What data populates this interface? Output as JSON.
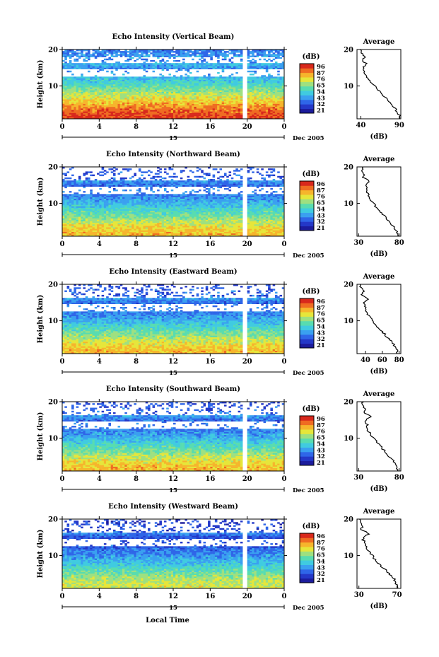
{
  "figure": {
    "xlabel": "Local Time",
    "date_label": "Dec 2005",
    "colorbar_unit": "(dB)",
    "colorbar_ticks": [
      "96",
      "87",
      "76",
      "65",
      "54",
      "43",
      "32",
      "21"
    ],
    "colorscale": [
      "#1c1c9c",
      "#2438c8",
      "#2f66e8",
      "#3aa0f0",
      "#40cbe0",
      "#58dcb0",
      "#9ee080",
      "#e6e63a",
      "#f6b52c",
      "#ef6c22",
      "#d8281c"
    ],
    "x_ticks": [
      "0",
      "4",
      "8",
      "12",
      "16",
      "20",
      "0"
    ],
    "day_label": "15",
    "ylabel": "Height (km)",
    "y_ticks": [
      "20",
      "10"
    ],
    "avg_title": "Average",
    "avg_xlabel": "(dB)"
  },
  "chart_data": [
    {
      "type": "heatmap",
      "title": "Echo Intensity (Vertical Beam)",
      "xlabel": "",
      "ylabel": "Height (km)",
      "x_range": [
        0,
        24
      ],
      "y_range": [
        1,
        20
      ],
      "z_range": [
        21,
        96
      ],
      "z_unit": "dB",
      "data_gap_hours": [
        19.6,
        20.0
      ],
      "profile_height_km": [
        2,
        4,
        6,
        8,
        10,
        12,
        14,
        15,
        16,
        17,
        18,
        19,
        20
      ],
      "profile_intensity_db": [
        90,
        84,
        75,
        67,
        58,
        50,
        44,
        43,
        48,
        42,
        45,
        41,
        40
      ],
      "average": {
        "title": "Average",
        "xlabel": "(dB)",
        "xticks": [
          "40",
          "90"
        ],
        "xlim": [
          35,
          92
        ]
      }
    },
    {
      "type": "heatmap",
      "title": "Echo Intensity (Northward Beam)",
      "xlabel": "",
      "ylabel": "Height (km)",
      "x_range": [
        0,
        24
      ],
      "y_range": [
        1,
        20
      ],
      "z_range": [
        21,
        96
      ],
      "z_unit": "dB",
      "data_gap_hours": [
        19.6,
        20.0
      ],
      "profile_height_km": [
        2,
        4,
        6,
        8,
        10,
        12,
        14,
        15,
        16,
        17,
        18,
        19,
        20
      ],
      "profile_intensity_db": [
        78,
        72,
        64,
        56,
        48,
        42,
        40,
        38,
        44,
        36,
        37,
        35,
        35
      ],
      "average": {
        "title": "Average",
        "xlabel": "(dB)",
        "xticks": [
          "30",
          "80"
        ],
        "xlim": [
          28,
          82
        ]
      }
    },
    {
      "type": "heatmap",
      "title": "Echo Intensity (Eastward Beam)",
      "xlabel": "",
      "ylabel": "Height (km)",
      "x_range": [
        0,
        24
      ],
      "y_range": [
        1,
        20
      ],
      "z_range": [
        21,
        96
      ],
      "z_unit": "dB",
      "data_gap_hours": [
        19.6,
        20.0
      ],
      "profile_height_km": [
        2,
        4,
        6,
        8,
        10,
        12,
        14,
        15,
        16,
        17,
        18,
        19,
        20
      ],
      "profile_intensity_db": [
        78,
        72,
        64,
        56,
        48,
        42,
        40,
        38,
        45,
        36,
        38,
        35,
        34
      ],
      "average": {
        "title": "Average",
        "xlabel": "(dB)",
        "xticks": [
          "40",
          "60",
          "80"
        ],
        "xlim": [
          30,
          82
        ]
      }
    },
    {
      "type": "heatmap",
      "title": "Echo Intensity (Southward Beam)",
      "xlabel": "",
      "ylabel": "Height (km)",
      "x_range": [
        0,
        24
      ],
      "y_range": [
        1,
        20
      ],
      "z_range": [
        21,
        96
      ],
      "z_unit": "dB",
      "data_gap_hours": [
        19.6,
        20.0
      ],
      "profile_height_km": [
        2,
        4,
        6,
        8,
        10,
        12,
        14,
        15,
        16,
        17,
        18,
        19,
        20
      ],
      "profile_intensity_db": [
        78,
        72,
        64,
        56,
        48,
        42,
        40,
        38,
        45,
        36,
        38,
        35,
        35
      ],
      "average": {
        "title": "Average",
        "xlabel": "(dB)",
        "xticks": [
          "30",
          "80"
        ],
        "xlim": [
          28,
          82
        ]
      }
    },
    {
      "type": "heatmap",
      "title": "Echo Intensity (Westward Beam)",
      "xlabel": "Local Time",
      "ylabel": "Height (km)",
      "x_range": [
        0,
        24
      ],
      "y_range": [
        1,
        20
      ],
      "z_range": [
        21,
        96
      ],
      "z_unit": "dB",
      "data_gap_hours": [
        19.6,
        20.0
      ],
      "profile_height_km": [
        2,
        4,
        6,
        8,
        10,
        12,
        14,
        15,
        16,
        17,
        18,
        19,
        20
      ],
      "profile_intensity_db": [
        70,
        66,
        58,
        50,
        44,
        38,
        35,
        34,
        42,
        32,
        34,
        31,
        31
      ],
      "average": {
        "title": "Average",
        "xlabel": "(dB)",
        "xticks": [
          "30",
          "70"
        ],
        "xlim": [
          28,
          74
        ]
      }
    }
  ]
}
